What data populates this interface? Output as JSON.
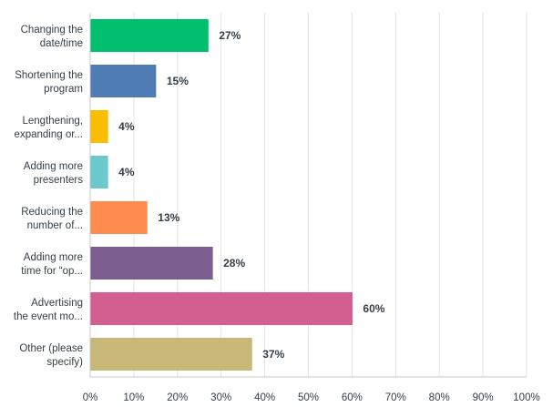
{
  "chart_data": {
    "type": "bar",
    "orientation": "horizontal",
    "categories": [
      [
        "Changing the",
        "date/time"
      ],
      [
        "Shortening the",
        "program"
      ],
      [
        "Lengthening,",
        "expanding or..."
      ],
      [
        "Adding more",
        "presenters"
      ],
      [
        "Reducing the",
        "number of..."
      ],
      [
        "Adding more",
        "time for “op..."
      ],
      [
        "Advertising",
        "the event mo..."
      ],
      [
        "Other (please",
        "specify)"
      ]
    ],
    "values": [
      27,
      15,
      4,
      4,
      13,
      28,
      60,
      37
    ],
    "value_labels": [
      "27%",
      "15%",
      "4%",
      "4%",
      "13%",
      "28%",
      "60%",
      "37%"
    ],
    "colors": [
      "#00bf6f",
      "#507cb6",
      "#f9be00",
      "#6bc8cd",
      "#ff8b4f",
      "#7d5e90",
      "#d25f90",
      "#c8b878"
    ],
    "xlim": [
      0,
      100
    ],
    "ticks": [
      "0%",
      "10%",
      "20%",
      "30%",
      "40%",
      "50%",
      "60%",
      "70%",
      "80%",
      "90%",
      "100%"
    ],
    "grid": true,
    "title": "",
    "xlabel": "",
    "ylabel": ""
  }
}
